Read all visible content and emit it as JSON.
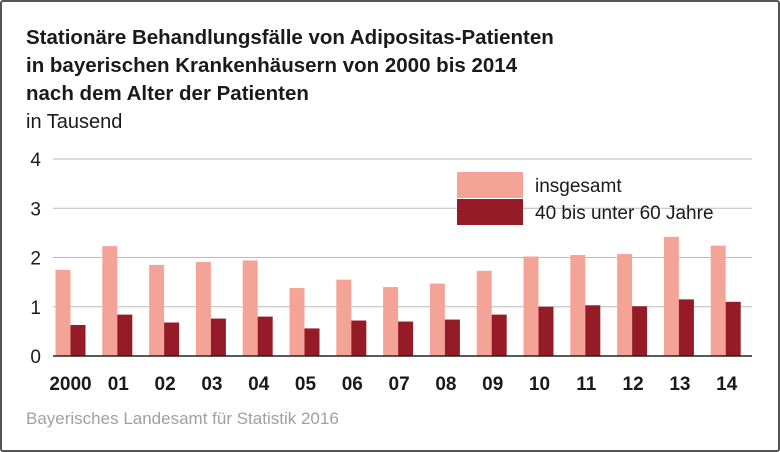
{
  "title_lines": [
    "Stationäre Behandlungsfälle von Adipositas-Patienten",
    "in bayerischen Krankenhäusern von 2000 bis 2014",
    "nach dem Alter der Patienten"
  ],
  "subtitle": "in Tausend",
  "source": "Bayerisches Landesamt für Statistik 2016",
  "colors": {
    "insgesamt": "#f4a397",
    "age_40_60": "#951c26",
    "grid": "#bbbbbb",
    "axis": "#222222"
  },
  "chart_data": {
    "type": "bar",
    "categories": [
      "2000",
      "01",
      "02",
      "03",
      "04",
      "05",
      "06",
      "07",
      "08",
      "09",
      "10",
      "11",
      "12",
      "13",
      "14"
    ],
    "series": [
      {
        "name": "insgesamt",
        "values": [
          1.75,
          2.23,
          1.85,
          1.91,
          1.94,
          1.38,
          1.55,
          1.4,
          1.47,
          1.73,
          2.02,
          2.05,
          2.07,
          2.42,
          2.24
        ]
      },
      {
        "name": "40 bis unter 60 Jahre",
        "values": [
          0.63,
          0.84,
          0.68,
          0.76,
          0.8,
          0.56,
          0.72,
          0.7,
          0.74,
          0.84,
          1.0,
          1.03,
          1.01,
          1.15,
          1.1
        ]
      }
    ],
    "ylim": [
      0,
      4
    ],
    "yticks": [
      "0",
      "1",
      "2",
      "3",
      "4"
    ],
    "xlabel": "",
    "ylabel": "",
    "grid": true,
    "legend_position": "top-right"
  }
}
